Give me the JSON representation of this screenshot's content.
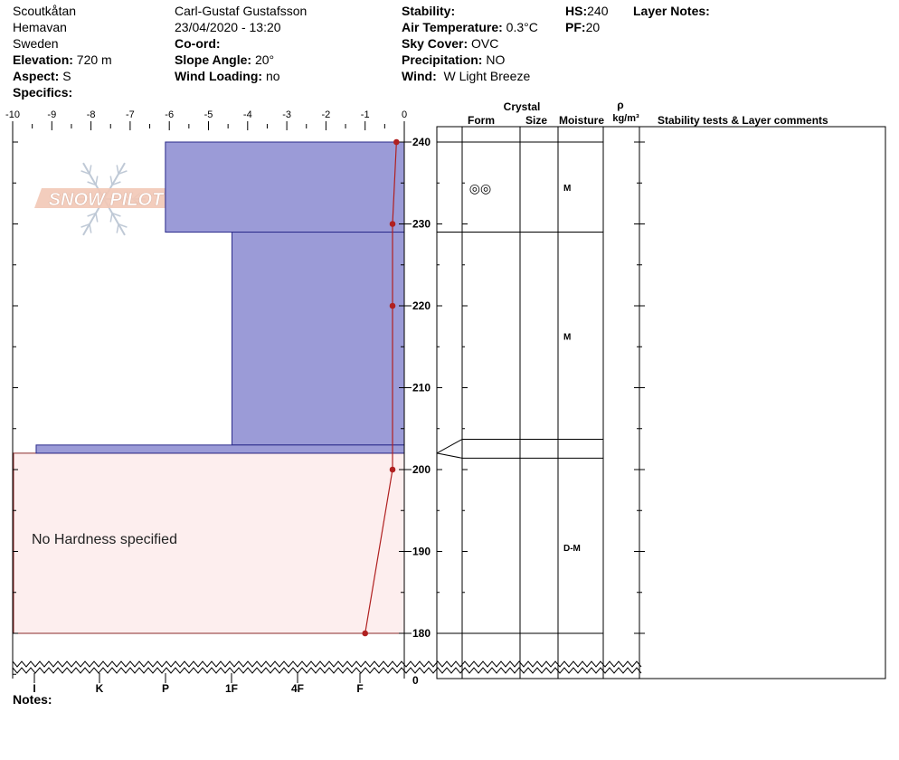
{
  "header": {
    "location": "Scoutkåtan",
    "region": "Hemavan",
    "country": "Sweden",
    "elevation_label": "Elevation:",
    "elevation_value": "720 m",
    "aspect_label": "Aspect:",
    "aspect_value": "S",
    "specifics_label": "Specifics:",
    "observer": "Carl-Gustaf Gustafsson",
    "datetime": "23/04/2020 - 13:20",
    "coord_label": "Co-ord:",
    "slope_label": "Slope Angle:",
    "slope_value": "20°",
    "wind_loading_label": "Wind Loading:",
    "wind_loading_value": "no",
    "stability_label": "Stability:",
    "air_temp_label": "Air Temperature:",
    "air_temp_value": "0.3°C",
    "sky_label": "Sky Cover:",
    "sky_value": "OVC",
    "precip_label": "Precipitation:",
    "precip_value": "NO",
    "wind_label": "Wind:",
    "wind_value": "W Light Breeze",
    "hs_label": "HS:",
    "hs_value": "240",
    "pf_label": "PF:",
    "pf_value": "20",
    "layer_notes_label": "Layer Notes:"
  },
  "logo_text": "SNOW PILOT",
  "notes_label": "Notes:",
  "no_hardness_text": "No Hardness specified",
  "columns": {
    "crystal": "Crystal",
    "form": "Form",
    "size": "Size",
    "moisture": "Moisture",
    "rho": "ρ",
    "density_unit": "kg/m³",
    "stability": "Stability tests & Layer comments"
  },
  "colors": {
    "hardness_fill": "#9b9bd7",
    "hardness_stroke": "#2a2a8a",
    "no_hardness_fill": "#fdeeee",
    "no_hardness_stroke": "#8a2a2a",
    "temperature": "#b02020"
  },
  "chart_data": {
    "type": "snow_profile",
    "temperature_axis": {
      "ticks": [
        -10,
        -9,
        -8,
        -7,
        -6,
        -5,
        -4,
        -3,
        -2,
        -1,
        0
      ],
      "labels": [
        "-10",
        "-9",
        "-8",
        "-7",
        "-6",
        "-5",
        "-4",
        "-3",
        "-2",
        "-1",
        "0"
      ]
    },
    "hardness_axis": {
      "labels": [
        "I",
        "K",
        "P",
        "1F",
        "4F",
        "F"
      ]
    },
    "height_axis": {
      "ticks": [
        180,
        190,
        200,
        210,
        220,
        230,
        240
      ],
      "labels": [
        "180",
        "190",
        "200",
        "210",
        "220",
        "230",
        "240"
      ],
      "break_label": "0"
    },
    "hardness_layers": [
      {
        "bottom": 229,
        "top": 240,
        "hardness_temp": -6.1
      },
      {
        "bottom": 203,
        "top": 229,
        "hardness_temp": -4.4
      },
      {
        "bottom": 202,
        "top": 203,
        "hardness_temp": -9.4
      }
    ],
    "no_hardness_layer": {
      "bottom": 180,
      "top": 202
    },
    "temperature_profile": [
      {
        "height": 240,
        "temp": -0.2
      },
      {
        "height": 230,
        "temp": -0.3
      },
      {
        "height": 220,
        "temp": -0.3
      },
      {
        "height": 200,
        "temp": -0.3
      },
      {
        "height": 180,
        "temp": -1.0
      }
    ],
    "layer_boundaries": [
      240,
      229,
      203.7,
      201.4,
      180
    ],
    "layer_annotations": [
      {
        "height": 234.5,
        "form_symbol": "◎◎",
        "moisture": "M"
      },
      {
        "height": 216.3,
        "form_symbol": "",
        "moisture": "M"
      },
      {
        "height": 190.5,
        "form_symbol": "",
        "moisture": "D-M"
      }
    ]
  }
}
